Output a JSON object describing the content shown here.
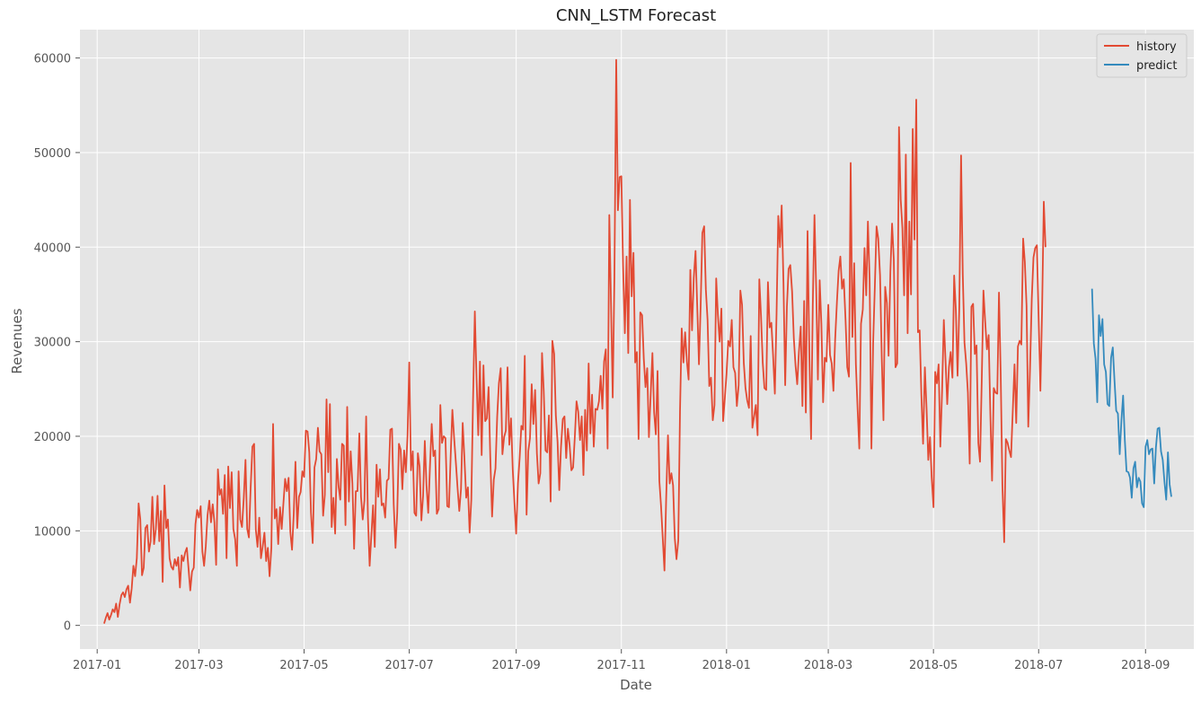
{
  "chart_data": {
    "type": "line",
    "title": "CNN_LSTM Forecast",
    "xlabel": "Date",
    "ylabel": "Revenues",
    "x_start": "2017-01-05",
    "xlim": [
      "2016-12-22",
      "2018-09-29"
    ],
    "ylim": [
      -2500,
      63000
    ],
    "x_ticks": [
      "2017-01",
      "2017-03",
      "2017-05",
      "2017-07",
      "2017-09",
      "2017-11",
      "2018-01",
      "2018-03",
      "2018-05",
      "2018-07",
      "2018-09"
    ],
    "y_ticks": [
      0,
      10000,
      20000,
      30000,
      40000,
      50000,
      60000
    ],
    "grid": true,
    "legend": "top-right",
    "series": [
      {
        "name": "history",
        "color": "#E24A33",
        "start_date": "2017-01-05",
        "values": [
          200,
          800,
          1300,
          600,
          1100,
          1700,
          1400,
          2300,
          900,
          2200,
          3200,
          3500,
          3000,
          3800,
          4200,
          2400,
          3900,
          6300,
          5200,
          7100,
          12900,
          11200,
          5300,
          6100,
          10300,
          10600,
          7800,
          8900,
          13600,
          8600,
          10200,
          13700,
          8900,
          12100,
          4600,
          14800,
          10300,
          11200,
          7100,
          6200,
          5900,
          7000,
          6300,
          7200,
          4000,
          7400,
          6800,
          7700,
          8200,
          6000,
          3700,
          5700,
          6100,
          10700,
          12200,
          11400,
          12600,
          7800,
          6300,
          8400,
          11600,
          13200,
          10900,
          12800,
          10900,
          6400,
          16500,
          13800,
          14400,
          11800,
          15900,
          7100,
          16800,
          12400,
          16200,
          10200,
          9100,
          6300,
          16300,
          11200,
          10400,
          13500,
          17500,
          10200,
          9300,
          14500,
          18900,
          19200,
          10100,
          8300,
          11400,
          7100,
          8400,
          9800,
          6800,
          8200,
          5200,
          8200,
          21300,
          11300,
          12300,
          8600,
          12500,
          10200,
          12900,
          15500,
          14200,
          15600,
          9900,
          8000,
          11800,
          17300,
          10300,
          13600,
          14100,
          16300,
          15700,
          20600,
          20500,
          18300,
          11900,
          8700,
          16700,
          17600,
          20900,
          18400,
          18100,
          11600,
          13800,
          23900,
          16200,
          23400,
          10400,
          13500,
          9700,
          17600,
          14700,
          13300,
          19200,
          19000,
          10600,
          23100,
          13100,
          18400,
          15000,
          8100,
          14200,
          14200,
          20300,
          13600,
          11200,
          13200,
          22100,
          11400,
          6300,
          9500,
          12700,
          8300,
          17000,
          13600,
          16500,
          12700,
          12900,
          11400,
          15300,
          15500,
          20700,
          20800,
          12800,
          8200,
          11900,
          19200,
          18600,
          14400,
          18500,
          16200,
          20100,
          27800,
          16400,
          18400,
          11900,
          11600,
          18200,
          16800,
          11100,
          13700,
          19500,
          14800,
          11900,
          16900,
          21300,
          17900,
          18500,
          11800,
          12300,
          23300,
          19300,
          20000,
          19800,
          12600,
          12500,
          17900,
          22800,
          19900,
          17200,
          14500,
          12100,
          14400,
          21400,
          17700,
          13500,
          14600,
          9800,
          13300,
          23800,
          33200,
          26200,
          20100,
          27900,
          18000,
          27500,
          21600,
          21900,
          25200,
          17800,
          11500,
          15400,
          16600,
          22100,
          25600,
          27200,
          18100,
          19900,
          20600,
          27300,
          19100,
          21900,
          16500,
          13000,
          9700,
          15000,
          17700,
          21100,
          20700,
          28500,
          11700,
          18400,
          19800,
          25500,
          21300,
          24900,
          18200,
          15000,
          16100,
          28800,
          24800,
          18500,
          18300,
          22200,
          13100,
          30100,
          28700,
          22200,
          19400,
          14300,
          18800,
          21800,
          22100,
          17700,
          20800,
          19100,
          16400,
          16700,
          19900,
          23700,
          22600,
          19600,
          22100,
          15900,
          22800,
          18500,
          27700,
          20300,
          24400,
          18900,
          22900,
          22800,
          23700,
          26400,
          22900,
          27900,
          29200,
          18700,
          43400,
          34000,
          24100,
          36900,
          59800,
          43900,
          47400,
          47500,
          38100,
          30900,
          39000,
          28800,
          45000,
          34800,
          39400,
          27800,
          28900,
          19700,
          33100,
          32800,
          28200,
          25200,
          27200,
          19900,
          24500,
          28800,
          22500,
          20200,
          26900,
          15300,
          12600,
          9200,
          5800,
          13400,
          20100,
          15000,
          16100,
          14800,
          9200,
          7000,
          9000,
          22600,
          31400,
          27800,
          31000,
          27900,
          26000,
          37600,
          31200,
          36700,
          39600,
          33700,
          27600,
          33800,
          41500,
          42200,
          35500,
          32300,
          25300,
          26200,
          21700,
          23300,
          36700,
          32800,
          30000,
          33500,
          21600,
          24000,
          26600,
          30100,
          29500,
          32300,
          27300,
          26700,
          23200,
          25400,
          35400,
          33900,
          27800,
          25100,
          23800,
          23000,
          30600,
          20900,
          22100,
          23300,
          20100,
          36600,
          32700,
          27800,
          25100,
          24900,
          36300,
          31500,
          32000,
          28600,
          24500,
          33000,
          43300,
          40000,
          44400,
          36200,
          25400,
          33700,
          37700,
          38100,
          35300,
          30400,
          27500,
          25500,
          28900,
          31600,
          23200,
          34300,
          22500,
          41700,
          28800,
          19700,
          33800,
          43400,
          35700,
          26000,
          36500,
          31900,
          23600,
          28300,
          27900,
          33900,
          28600,
          27700,
          24800,
          30200,
          34200,
          37500,
          39000,
          35600,
          36600,
          32300,
          27300,
          26300,
          48900,
          30500,
          38300,
          27600,
          22900,
          18700,
          31900,
          33400,
          39900,
          34900,
          42700,
          36600,
          18700,
          29800,
          35800,
          42200,
          40900,
          37000,
          28300,
          21700,
          35800,
          34100,
          28500,
          37400,
          42500,
          38700,
          27300,
          27700,
          52700,
          45000,
          42000,
          34900,
          49800,
          30900,
          42700,
          35000,
          52500,
          40800,
          55600,
          31000,
          31200,
          24400,
          19200,
          27300,
          22900,
          17500,
          19900,
          15600,
          12500,
          26800,
          25600,
          27600,
          18900,
          24900,
          32300,
          28000,
          23400,
          27300,
          28900,
          26200,
          37000,
          33300,
          26400,
          33500,
          49700,
          37100,
          29900,
          27700,
          24600,
          17100,
          33700,
          34000,
          28700,
          29600,
          19300,
          17300,
          25800,
          35400,
          32200,
          29200,
          30700,
          22300,
          15300,
          25100,
          24600,
          24500,
          35200,
          26700,
          14900,
          8800,
          19700,
          19300,
          18500,
          17800,
          22800,
          27600,
          21400,
          29500,
          30100,
          29700,
          40900,
          38400,
          33800,
          21000,
          26900,
          34500,
          38900,
          39900,
          40200,
          32600,
          24800,
          33400,
          44800,
          40000
        ],
        "linewidth": 1.8
      },
      {
        "name": "predict",
        "color": "#348ABD",
        "start_date": "2018-08-01",
        "values": [
          35600,
          29800,
          28200,
          23600,
          32800,
          30600,
          32400,
          27600,
          26800,
          23400,
          23200,
          28300,
          29400,
          25900,
          22700,
          22400,
          18100,
          21700,
          24300,
          19600,
          16300,
          16200,
          15600,
          13500,
          16600,
          17300,
          14600,
          15600,
          15200,
          12900,
          12500,
          18900,
          19600,
          18100,
          18600,
          18700,
          15000,
          18800,
          20800,
          20900,
          18400,
          17500,
          15100,
          13300,
          18300,
          14900,
          13600
        ],
        "linewidth": 1.8
      }
    ]
  }
}
